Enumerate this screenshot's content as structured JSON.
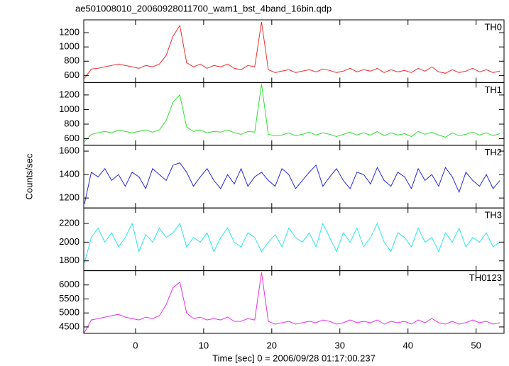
{
  "chart_data": [
    {
      "type": "line",
      "title": "ae501008010_20060928011700_wam1_bst_4band_16bin.qdp",
      "annotation": "TH0",
      "color": "#f03030",
      "xlim": [
        -7.6,
        54.1
      ],
      "ylim": [
        500,
        1380
      ],
      "yticks": [
        600,
        800,
        1000,
        1200
      ],
      "x": [
        -7.5,
        -6.5,
        -5.5,
        -4.5,
        -3.5,
        -2.5,
        -1.5,
        -0.5,
        0.5,
        1.5,
        2.5,
        3.5,
        4.5,
        5.5,
        6.5,
        7.5,
        8.5,
        9.5,
        10.5,
        11.5,
        12.5,
        13.5,
        14.5,
        15.5,
        16.5,
        17.5,
        18.5,
        19.5,
        20.5,
        21.5,
        22.5,
        23.5,
        24.5,
        25.5,
        26.5,
        27.5,
        28.5,
        29.5,
        30.5,
        31.5,
        32.5,
        33.5,
        34.5,
        35.5,
        36.5,
        37.5,
        38.5,
        39.5,
        40.5,
        41.5,
        42.5,
        43.5,
        44.5,
        45.5,
        46.5,
        47.5,
        48.5,
        49.5,
        50.5,
        51.5,
        52.5,
        53.5
      ],
      "values": [
        560,
        690,
        700,
        720,
        740,
        760,
        740,
        720,
        700,
        740,
        720,
        760,
        880,
        1150,
        1300,
        780,
        720,
        760,
        700,
        740,
        720,
        760,
        700,
        680,
        740,
        720,
        1350,
        680,
        640,
        660,
        680,
        640,
        660,
        680,
        650,
        690,
        670,
        640,
        660,
        700,
        650,
        680,
        660,
        700,
        640,
        680,
        650,
        670,
        640,
        700,
        660,
        720,
        650,
        630,
        680,
        640,
        660,
        700,
        650,
        680,
        640,
        660
      ]
    },
    {
      "type": "line",
      "annotation": "TH1",
      "color": "#30e030",
      "xlim": [
        -7.6,
        54.1
      ],
      "ylim": [
        510,
        1370
      ],
      "yticks": [
        600,
        800,
        1000,
        1200
      ],
      "x": [
        -7.5,
        -6.5,
        -5.5,
        -4.5,
        -3.5,
        -2.5,
        -1.5,
        -0.5,
        0.5,
        1.5,
        2.5,
        3.5,
        4.5,
        5.5,
        6.5,
        7.5,
        8.5,
        9.5,
        10.5,
        11.5,
        12.5,
        13.5,
        14.5,
        15.5,
        16.5,
        17.5,
        18.5,
        19.5,
        20.5,
        21.5,
        22.5,
        23.5,
        24.5,
        25.5,
        26.5,
        27.5,
        28.5,
        29.5,
        30.5,
        31.5,
        32.5,
        33.5,
        34.5,
        35.5,
        36.5,
        37.5,
        38.5,
        39.5,
        40.5,
        41.5,
        42.5,
        43.5,
        44.5,
        45.5,
        46.5,
        47.5,
        48.5,
        49.5,
        50.5,
        51.5,
        52.5,
        53.5
      ],
      "values": [
        560,
        660,
        680,
        700,
        680,
        720,
        700,
        680,
        700,
        720,
        690,
        720,
        850,
        1100,
        1200,
        760,
        700,
        720,
        680,
        700,
        690,
        720,
        680,
        660,
        700,
        690,
        1350,
        660,
        640,
        650,
        680,
        640,
        660,
        690,
        650,
        680,
        660,
        630,
        660,
        690,
        650,
        680,
        650,
        700,
        640,
        680,
        650,
        670,
        630,
        700,
        660,
        690,
        650,
        620,
        680,
        640,
        660,
        690,
        650,
        680,
        640,
        670
      ]
    },
    {
      "type": "line",
      "annotation": "TH2",
      "color": "#2828e0",
      "ylabel": "Counts/sec",
      "xlim": [
        -7.6,
        54.1
      ],
      "ylim": [
        1115,
        1650
      ],
      "yticks": [
        1200,
        1400,
        1600
      ],
      "x": [
        -7.5,
        -6.5,
        -5.5,
        -4.5,
        -3.5,
        -2.5,
        -1.5,
        -0.5,
        0.5,
        1.5,
        2.5,
        3.5,
        4.5,
        5.5,
        6.5,
        7.5,
        8.5,
        9.5,
        10.5,
        11.5,
        12.5,
        13.5,
        14.5,
        15.5,
        16.5,
        17.5,
        18.5,
        19.5,
        20.5,
        21.5,
        22.5,
        23.5,
        24.5,
        25.5,
        26.5,
        27.5,
        28.5,
        29.5,
        30.5,
        31.5,
        32.5,
        33.5,
        34.5,
        35.5,
        36.5,
        37.5,
        38.5,
        39.5,
        40.5,
        41.5,
        42.5,
        43.5,
        44.5,
        45.5,
        46.5,
        47.5,
        48.5,
        49.5,
        50.5,
        51.5,
        52.5,
        53.5
      ],
      "values": [
        1150,
        1420,
        1380,
        1450,
        1350,
        1400,
        1300,
        1420,
        1380,
        1280,
        1450,
        1400,
        1350,
        1480,
        1500,
        1420,
        1300,
        1380,
        1450,
        1350,
        1280,
        1400,
        1320,
        1450,
        1300,
        1380,
        1420,
        1350,
        1300,
        1450,
        1400,
        1280,
        1350,
        1420,
        1480,
        1300,
        1380,
        1450,
        1350,
        1280,
        1420,
        1400,
        1320,
        1460,
        1350,
        1300,
        1420,
        1380,
        1280,
        1450,
        1350,
        1400,
        1300,
        1460,
        1380,
        1250,
        1420,
        1350,
        1300,
        1400,
        1280,
        1350
      ]
    },
    {
      "type": "line",
      "annotation": "TH3",
      "color": "#28e8e8",
      "xlim": [
        -7.6,
        54.1
      ],
      "ylim": [
        1695,
        2365
      ],
      "yticks": [
        1800,
        2000,
        2200
      ],
      "x": [
        -7.5,
        -6.5,
        -5.5,
        -4.5,
        -3.5,
        -2.5,
        -1.5,
        -0.5,
        0.5,
        1.5,
        2.5,
        3.5,
        4.5,
        5.5,
        6.5,
        7.5,
        8.5,
        9.5,
        10.5,
        11.5,
        12.5,
        13.5,
        14.5,
        15.5,
        16.5,
        17.5,
        18.5,
        19.5,
        20.5,
        21.5,
        22.5,
        23.5,
        24.5,
        25.5,
        26.5,
        27.5,
        28.5,
        29.5,
        30.5,
        31.5,
        32.5,
        33.5,
        34.5,
        35.5,
        36.5,
        37.5,
        38.5,
        39.5,
        40.5,
        41.5,
        42.5,
        43.5,
        44.5,
        45.5,
        46.5,
        47.5,
        48.5,
        49.5,
        50.5,
        51.5,
        52.5,
        53.5
      ],
      "values": [
        1780,
        2050,
        2150,
        2000,
        2100,
        1950,
        2050,
        2200,
        1900,
        2080,
        2000,
        2150,
        2050,
        2100,
        2200,
        1950,
        2050,
        2000,
        2100,
        1900,
        2050,
        2150,
        2000,
        1950,
        2100,
        2050,
        1900,
        2000,
        2080,
        1950,
        2150,
        2050,
        2000,
        2100,
        1950,
        2200,
        2050,
        1900,
        2100,
        2000,
        2150,
        1950,
        2050,
        2200,
        2000,
        1900,
        2100,
        2050,
        1950,
        2150,
        2000,
        2050,
        1900,
        2100,
        2000,
        2150,
        1950,
        2050,
        2000,
        2100,
        1950,
        2000
      ]
    },
    {
      "type": "line",
      "annotation": "TH0123",
      "color": "#e830e8",
      "xlabel": "Time [sec] 0 = 2006/09/28 01:17:00.237",
      "xlim": [
        -7.6,
        54.1
      ],
      "ylim": [
        4270,
        6510
      ],
      "yticks": [
        4500,
        5000,
        5500,
        6000
      ],
      "xticks": [
        0,
        10,
        20,
        30,
        40,
        50
      ],
      "x": [
        -7.5,
        -6.5,
        -5.5,
        -4.5,
        -3.5,
        -2.5,
        -1.5,
        -0.5,
        0.5,
        1.5,
        2.5,
        3.5,
        4.5,
        5.5,
        6.5,
        7.5,
        8.5,
        9.5,
        10.5,
        11.5,
        12.5,
        13.5,
        14.5,
        15.5,
        16.5,
        17.5,
        18.5,
        19.5,
        20.5,
        21.5,
        22.5,
        23.5,
        24.5,
        25.5,
        26.5,
        27.5,
        28.5,
        29.5,
        30.5,
        31.5,
        32.5,
        33.5,
        34.5,
        35.5,
        36.5,
        37.5,
        38.5,
        39.5,
        40.5,
        41.5,
        42.5,
        43.5,
        44.5,
        45.5,
        46.5,
        47.5,
        48.5,
        49.5,
        50.5,
        51.5,
        52.5,
        53.5
      ],
      "values": [
        4300,
        4750,
        4800,
        4850,
        4900,
        4950,
        4850,
        4800,
        4750,
        4850,
        4800,
        4900,
        5300,
        5900,
        6100,
        5000,
        4800,
        4850,
        4750,
        4800,
        4750,
        4850,
        4700,
        4700,
        4800,
        4750,
        6450,
        4700,
        4600,
        4650,
        4700,
        4600,
        4650,
        4700,
        4650,
        4750,
        4700,
        4600,
        4650,
        4750,
        4650,
        4700,
        4650,
        4750,
        4600,
        4700,
        4650,
        4700,
        4600,
        4750,
        4650,
        4800,
        4650,
        4600,
        4700,
        4600,
        4650,
        4750,
        4650,
        4700,
        4600,
        4650
      ]
    }
  ]
}
